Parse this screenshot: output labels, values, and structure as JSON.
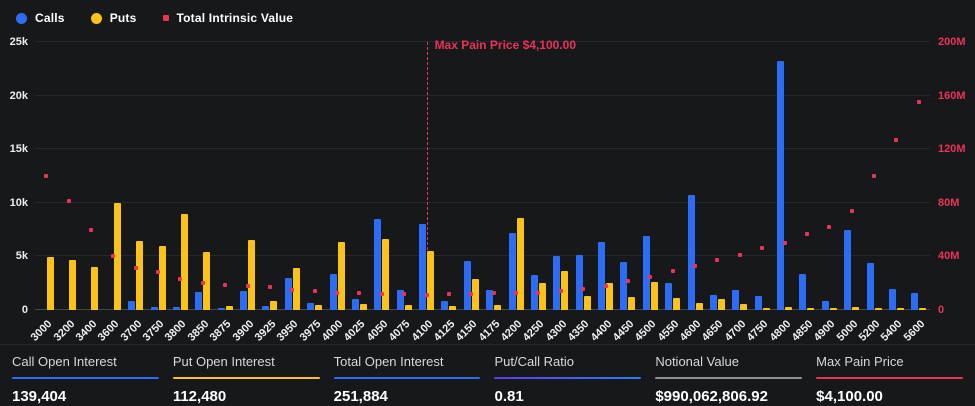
{
  "colors": {
    "calls": "#2c6cf6",
    "puts": "#fbc318",
    "intrinsic": "#ea3359",
    "putcall_gradient": [
      "#5b3df0",
      "#2e7bff"
    ],
    "neutral": "#8f8f8f",
    "axis_text": "#ececec",
    "background": "#17181a"
  },
  "annotation": {
    "label": "Max Pain Price $4,100.00",
    "category": "4100"
  },
  "chart_data": {
    "type": "bar",
    "title": "",
    "grid": true,
    "legend_position": "top-left",
    "categories": [
      "3000",
      "3200",
      "3400",
      "3600",
      "3700",
      "3750",
      "3800",
      "3850",
      "3875",
      "3900",
      "3925",
      "3950",
      "3975",
      "4000",
      "4025",
      "4050",
      "4075",
      "4100",
      "4125",
      "4150",
      "4175",
      "4200",
      "4250",
      "4300",
      "4350",
      "4400",
      "4450",
      "4500",
      "4550",
      "4600",
      "4650",
      "4700",
      "4750",
      "4800",
      "4850",
      "4900",
      "5000",
      "5200",
      "5400",
      "5600"
    ],
    "series": [
      {
        "name": "Calls",
        "kind": "bar",
        "axis": "left",
        "color_key": "calls",
        "values": [
          0,
          0,
          0,
          0,
          800,
          300,
          300,
          1700,
          150,
          1800,
          350,
          3000,
          650,
          3400,
          1000,
          8500,
          1900,
          8000,
          800,
          4600,
          1900,
          7200,
          3300,
          5000,
          5100,
          6300,
          4500,
          6900,
          2500,
          10700,
          1400,
          1900,
          1300,
          23200,
          3400,
          850,
          7500,
          4400,
          2000,
          1600
        ]
      },
      {
        "name": "Puts",
        "kind": "bar",
        "axis": "left",
        "color_key": "puts",
        "values": [
          4900,
          4700,
          4000,
          10000,
          6400,
          6000,
          9000,
          5400,
          400,
          6500,
          800,
          3900,
          500,
          6300,
          600,
          6600,
          500,
          5500,
          400,
          2900,
          500,
          8600,
          2500,
          3600,
          1300,
          2500,
          1200,
          2600,
          1100,
          700,
          1000,
          550,
          150,
          300,
          150,
          100,
          250,
          150,
          100,
          100
        ]
      },
      {
        "name": "Total Intrinsic Value",
        "kind": "scatter",
        "axis": "right",
        "color_key": "intrinsic",
        "values": [
          100,
          81,
          60,
          40,
          31,
          28,
          23,
          20,
          19,
          18,
          17,
          15,
          14,
          13,
          12.5,
          12,
          12,
          11,
          12,
          12,
          13,
          12.5,
          13,
          14,
          16,
          18,
          22,
          25,
          29,
          33,
          37,
          41,
          46,
          50,
          57,
          62,
          74,
          100,
          127,
          155
        ]
      }
    ],
    "left_axis": {
      "max": 25000,
      "ticks": [
        "0",
        "5k",
        "10k",
        "15k",
        "20k",
        "25k"
      ]
    },
    "right_axis": {
      "max": 200,
      "ticks": [
        "0",
        "40M",
        "80M",
        "120M",
        "160M",
        "200M"
      ]
    }
  },
  "stats": [
    {
      "label": "Call Open Interest",
      "value": "139,404",
      "accent": "calls"
    },
    {
      "label": "Put Open Interest",
      "value": "112,480",
      "accent": "puts"
    },
    {
      "label": "Total Open Interest",
      "value": "251,884",
      "accent": "calls"
    },
    {
      "label": "Put/Call Ratio",
      "value": "0.81",
      "accent": "putcall"
    },
    {
      "label": "Notional Value",
      "value": "$990,062,806.92",
      "accent": "neutral"
    },
    {
      "label": "Max Pain Price",
      "value": "$4,100.00",
      "accent": "intrinsic"
    }
  ]
}
